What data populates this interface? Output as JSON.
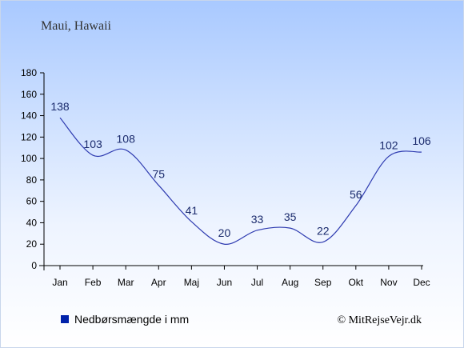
{
  "location": "Maui, Hawaii",
  "credit": "© MitRejseVejr.dk",
  "legend": {
    "label": "Nedbørsmængde i mm",
    "color": "#0022aa"
  },
  "line_color": "#2e3bb0",
  "chart_data": {
    "type": "line",
    "title": "Maui, Hawaii",
    "categories": [
      "Jan",
      "Feb",
      "Mar",
      "Apr",
      "Maj",
      "Jun",
      "Jul",
      "Aug",
      "Sep",
      "Okt",
      "Nov",
      "Dec"
    ],
    "series": [
      {
        "name": "Nedbørsmængde i mm",
        "values": [
          138,
          103,
          108,
          75,
          41,
          20,
          33,
          35,
          22,
          56,
          102,
          106
        ]
      }
    ],
    "ylim": [
      0,
      180
    ],
    "yticks": [
      0,
      20,
      40,
      60,
      80,
      100,
      120,
      140,
      160,
      180
    ],
    "grid": false,
    "legend_position": "bottom-left"
  }
}
